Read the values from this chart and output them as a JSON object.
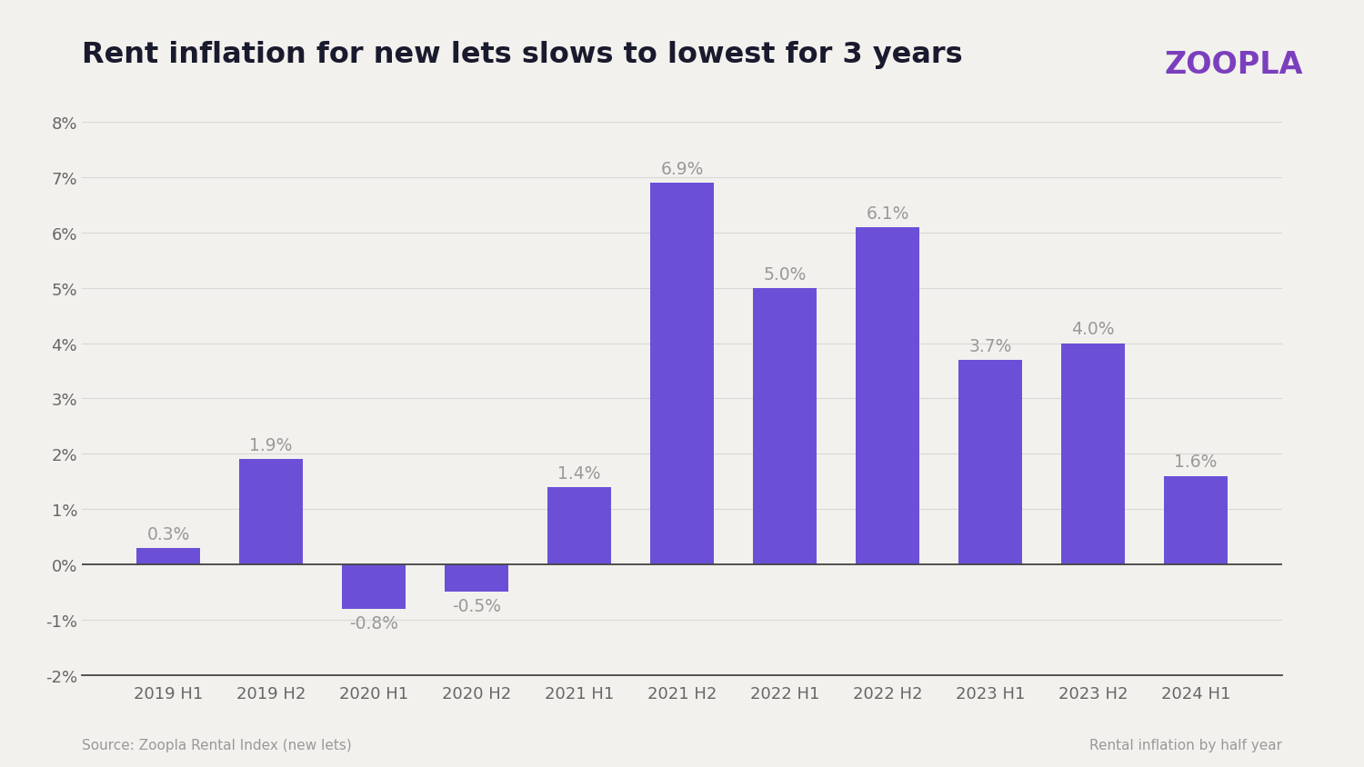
{
  "title": "Rent inflation for new lets slows to lowest for 3 years",
  "categories": [
    "2019 H1",
    "2019 H2",
    "2020 H1",
    "2020 H2",
    "2021 H1",
    "2021 H2",
    "2022 H1",
    "2022 H2",
    "2023 H1",
    "2023 H2",
    "2024 H1"
  ],
  "values": [
    0.3,
    1.9,
    -0.8,
    -0.5,
    1.4,
    6.9,
    5.0,
    6.1,
    3.7,
    4.0,
    1.6
  ],
  "labels": [
    "0.3%",
    "1.9%",
    "-0.8%",
    "-0.5%",
    "1.4%",
    "6.9%",
    "5.0%",
    "6.1%",
    "3.7%",
    "4.0%",
    "1.6%"
  ],
  "bar_color": "#6B50D7",
  "background_color": "#F2F1ED",
  "ylim": [
    -2.0,
    8.0
  ],
  "yticks": [
    -2,
    -1,
    0,
    1,
    2,
    3,
    4,
    5,
    6,
    7,
    8
  ],
  "ytick_labels": [
    "-2%",
    "-1%",
    "0%",
    "1%",
    "2%",
    "3%",
    "4%",
    "5%",
    "6%",
    "7%",
    "8%"
  ],
  "title_fontsize": 23,
  "title_color": "#1a1a2e",
  "label_color": "#999999",
  "tick_color": "#666666",
  "source_text": "Source: Zoopla Rental Index (new lets)",
  "note_text": "Rental inflation by half year",
  "zoopla_text": "ZOOPLA",
  "zoopla_color": "#7B3FBE"
}
